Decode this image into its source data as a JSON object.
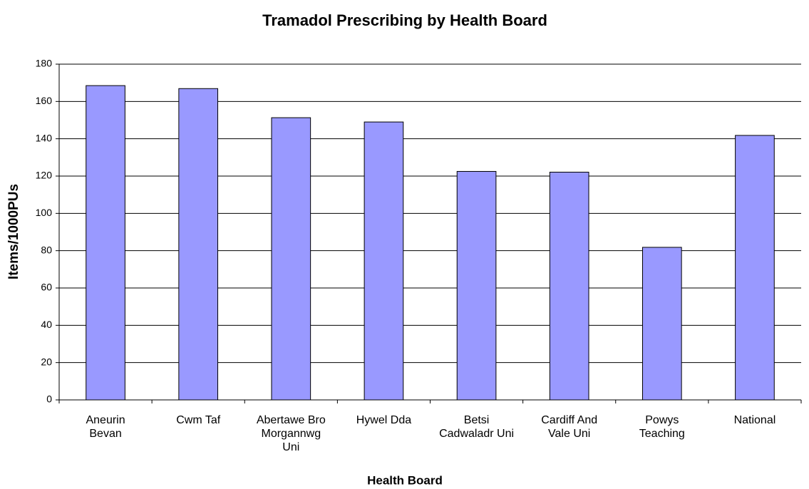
{
  "chart_data": {
    "type": "bar",
    "title": "Tramadol Prescribing by Health Board",
    "x_label": "Health Board",
    "y_label": "Items/1000PUs",
    "categories": [
      "Aneurin\nBevan",
      "Cwm Taf",
      "Abertawe Bro\nMorgannwg\nUni",
      "Hywel Dda",
      "Betsi\nCadwaladr Uni",
      "Cardiff And\nVale Uni",
      "Powys\nTeaching",
      "National"
    ],
    "values": [
      168.5,
      166.9,
      151.3,
      149,
      122.5,
      122.1,
      81.8,
      141.8
    ],
    "color": "#9999ff",
    "ylim": [
      0,
      180
    ],
    "yticks": [
      0,
      20,
      40,
      60,
      80,
      100,
      120,
      140,
      160,
      180
    ],
    "grid": true
  }
}
